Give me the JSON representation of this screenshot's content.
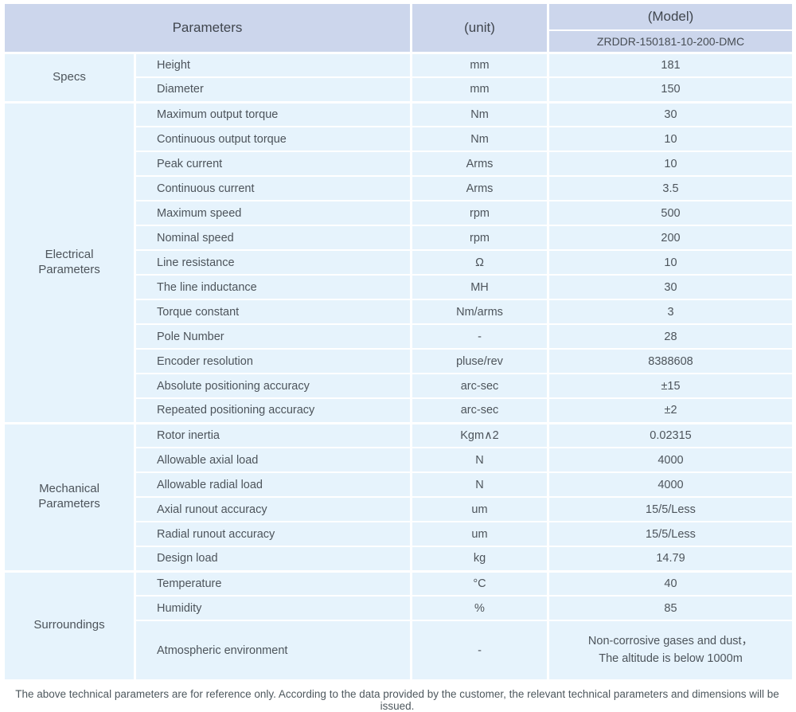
{
  "header": {
    "parameters_label": "Parameters",
    "unit_label": "(unit)",
    "model_label": "(Model)",
    "model_number": "ZRDDR-150181-10-200-DMC"
  },
  "sections": [
    {
      "name": "Specs",
      "rows": [
        {
          "param": "Height",
          "unit": "mm",
          "value": "181"
        },
        {
          "param": "Diameter",
          "unit": "mm",
          "value": "150"
        }
      ]
    },
    {
      "name": "Electrical\nParameters",
      "rows": [
        {
          "param": "Maximum output torque",
          "unit": "Nm",
          "value": "30"
        },
        {
          "param": "Continuous output torque",
          "unit": "Nm",
          "value": "10"
        },
        {
          "param": "Peak current",
          "unit": "Arms",
          "value": "10"
        },
        {
          "param": "Continuous current",
          "unit": "Arms",
          "value": "3.5"
        },
        {
          "param": "Maximum speed",
          "unit": "rpm",
          "value": "500"
        },
        {
          "param": "Nominal speed",
          "unit": "rpm",
          "value": "200"
        },
        {
          "param": "Line resistance",
          "unit": "Ω",
          "value": "10"
        },
        {
          "param": "The line inductance",
          "unit": "MH",
          "value": "30"
        },
        {
          "param": "Torque constant",
          "unit": "Nm/arms",
          "value": "3"
        },
        {
          "param": "Pole Number",
          "unit": "-",
          "value": "28"
        },
        {
          "param": "Encoder resolution",
          "unit": "pluse/rev",
          "value": "8388608"
        },
        {
          "param": "Absolute positioning accuracy",
          "unit": "arc-sec",
          "value": "±15"
        },
        {
          "param": "Repeated positioning accuracy",
          "unit": "arc-sec",
          "value": "±2"
        }
      ]
    },
    {
      "name": "Mechanical\nParameters",
      "rows": [
        {
          "param": "Rotor inertia",
          "unit": "Kgm∧2",
          "value": "0.02315"
        },
        {
          "param": "Allowable axial load",
          "unit": "N",
          "value": "4000"
        },
        {
          "param": "Allowable radial load",
          "unit": "N",
          "value": "4000"
        },
        {
          "param": "Axial runout accuracy",
          "unit": "um",
          "value": "15/5/Less"
        },
        {
          "param": "Radial runout accuracy",
          "unit": "um",
          "value": "15/5/Less"
        },
        {
          "param": "Design load",
          "unit": "kg",
          "value": "14.79"
        }
      ]
    },
    {
      "name": "Surroundings",
      "rows": [
        {
          "param": "Temperature",
          "unit": "°C",
          "value": "40"
        },
        {
          "param": "Humidity",
          "unit": "%",
          "value": "85"
        },
        {
          "param": "Atmospheric environment",
          "unit": "-",
          "value": "Non-corrosive gases and dust，\nThe altitude is below 1000m"
        }
      ]
    }
  ],
  "footer_note": "The above technical parameters are for reference only. According to the data provided by the customer, the relevant technical parameters and dimensions will be issued."
}
